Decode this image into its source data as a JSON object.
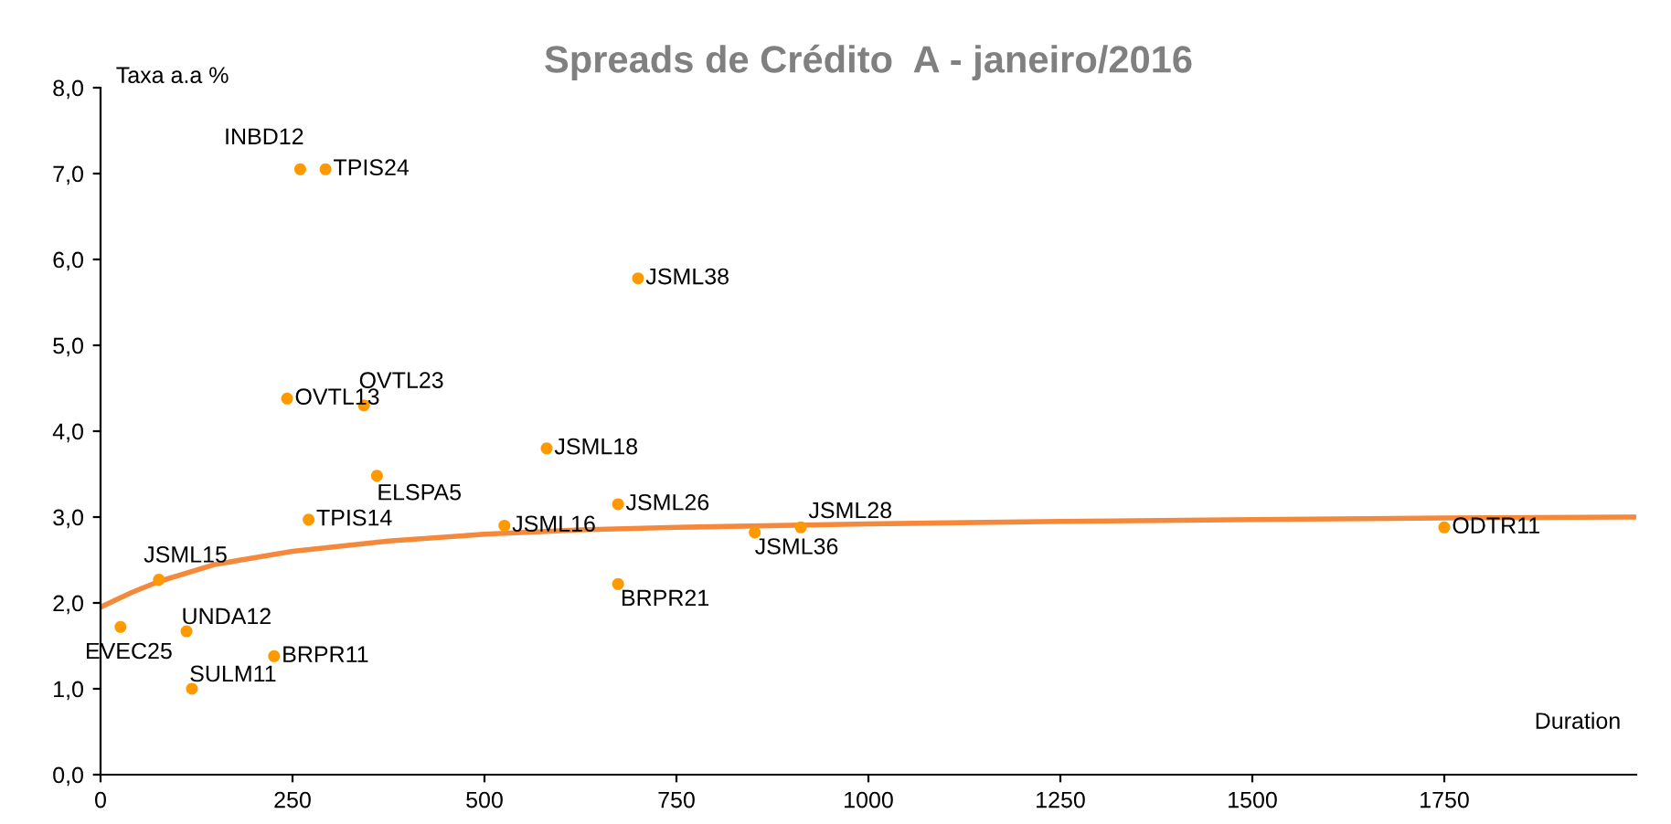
{
  "chart_data": {
    "type": "scatter",
    "title": "Spreads de Crédito  A - janeiro/2016",
    "xlabel": "Duration",
    "ylabel": "Taxa a.a %",
    "xlim": [
      0,
      2000
    ],
    "xticks": [
      0,
      250,
      500,
      750,
      1000,
      1250,
      1500,
      1750
    ],
    "ylim": [
      0,
      8
    ],
    "yticks": [
      {
        "value": 0,
        "label": "0,0"
      },
      {
        "value": 1,
        "label": "1,0"
      },
      {
        "value": 2,
        "label": "2,0"
      },
      {
        "value": 3,
        "label": "3,0"
      },
      {
        "value": 4,
        "label": "4,0"
      },
      {
        "value": 5,
        "label": "5,0"
      },
      {
        "value": 6,
        "label": "6,0"
      },
      {
        "value": 7,
        "label": "7,0"
      },
      {
        "value": 8,
        "label": "8,0"
      }
    ],
    "grid": false,
    "legend": false,
    "series": [
      {
        "color": "#ff9900",
        "marker": "circle",
        "x": [
          260,
          293,
          700,
          243,
          343,
          581,
          360,
          271,
          674,
          526,
          852,
          912,
          1750,
          674,
          76,
          26,
          112,
          226,
          119
        ],
        "values": [
          7.05,
          7.05,
          5.78,
          4.38,
          4.3,
          3.8,
          3.48,
          2.97,
          3.15,
          2.9,
          2.82,
          2.88,
          2.88,
          2.22,
          2.27,
          1.72,
          1.67,
          1.38,
          1.0
        ],
        "value_labels": [
          "INBD12",
          "TPIS24",
          "JSML38",
          "OVTL13",
          "OVTL23",
          "JSML18",
          "ELSPA5",
          "TPIS14",
          "JSML26",
          "JSML16",
          "JSML36",
          "JSML28",
          "ODTR11",
          "BRPR21",
          "JSML15",
          "EVEC25",
          "UNDA12",
          "BRPR11",
          "SULM11"
        ]
      },
      {
        "type": "line",
        "color": "#f4893c",
        "marker": "none",
        "x": [
          0,
          40,
          76,
          150,
          250,
          375,
          500,
          625,
          750,
          1000,
          1250,
          1500,
          1750,
          2000
        ],
        "values": [
          1.95,
          2.12,
          2.25,
          2.45,
          2.6,
          2.72,
          2.8,
          2.85,
          2.88,
          2.92,
          2.95,
          2.97,
          2.99,
          3.0
        ]
      }
    ]
  }
}
